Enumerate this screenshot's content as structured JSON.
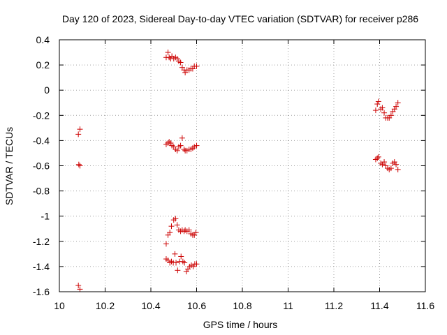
{
  "chart_data": {
    "type": "scatter",
    "title": "Day 120 of 2023, Sidereal Day-to-day VTEC variation (SDTVAR) for receiver p286",
    "xlabel": "GPS time / hours",
    "ylabel": "SDTVAR / TECUs",
    "xlim": [
      10,
      11.6
    ],
    "ylim": [
      -1.6,
      0.4
    ],
    "xticks": [
      10,
      10.2,
      10.4,
      10.6,
      10.8,
      11,
      11.2,
      11.4,
      11.6
    ],
    "yticks": [
      -1.6,
      -1.4,
      -1.2,
      -1,
      -0.8,
      -0.6,
      -0.4,
      -0.2,
      0,
      0.2,
      0.4
    ],
    "xtick_labels": [
      "10",
      "10.2",
      "10.4",
      "10.6",
      "10.8",
      "11",
      "11.2",
      "11.4",
      "11.6"
    ],
    "ytick_labels": [
      "-1.6",
      "-1.4",
      "-1.2",
      "-1",
      "-0.8",
      "-0.6",
      "-0.4",
      "-0.2",
      "0",
      "0.2",
      "0.4"
    ],
    "grid": true,
    "marker": "+",
    "color": "#cc0000",
    "series": [
      {
        "name": "SDTVAR",
        "points": [
          [
            10.083,
            -0.35
          ],
          [
            10.09,
            -0.31
          ],
          [
            10.085,
            -0.59
          ],
          [
            10.09,
            -0.6
          ],
          [
            10.083,
            -1.55
          ],
          [
            10.09,
            -1.58
          ],
          [
            10.467,
            0.26
          ],
          [
            10.475,
            0.3
          ],
          [
            10.48,
            0.26
          ],
          [
            10.487,
            0.25
          ],
          [
            10.492,
            0.27
          ],
          [
            10.5,
            0.25
          ],
          [
            10.508,
            0.26
          ],
          [
            10.515,
            0.25
          ],
          [
            10.522,
            0.23
          ],
          [
            10.53,
            0.22
          ],
          [
            10.537,
            0.18
          ],
          [
            10.545,
            0.16
          ],
          [
            10.55,
            0.14
          ],
          [
            10.558,
            0.16
          ],
          [
            10.567,
            0.16
          ],
          [
            10.575,
            0.17
          ],
          [
            10.583,
            0.17
          ],
          [
            10.59,
            0.19
          ],
          [
            10.6,
            0.19
          ],
          [
            10.467,
            -0.43
          ],
          [
            10.475,
            -0.42
          ],
          [
            10.48,
            -0.41
          ],
          [
            10.487,
            -0.42
          ],
          [
            10.492,
            -0.44
          ],
          [
            10.5,
            -0.45
          ],
          [
            10.508,
            -0.47
          ],
          [
            10.515,
            -0.48
          ],
          [
            10.522,
            -0.45
          ],
          [
            10.53,
            -0.44
          ],
          [
            10.537,
            -0.38
          ],
          [
            10.545,
            -0.47
          ],
          [
            10.55,
            -0.48
          ],
          [
            10.558,
            -0.48
          ],
          [
            10.567,
            -0.47
          ],
          [
            10.575,
            -0.47
          ],
          [
            10.583,
            -0.46
          ],
          [
            10.59,
            -0.45
          ],
          [
            10.6,
            -0.44
          ],
          [
            10.467,
            -1.22
          ],
          [
            10.475,
            -1.15
          ],
          [
            10.483,
            -1.13
          ],
          [
            10.49,
            -1.08
          ],
          [
            10.5,
            -1.03
          ],
          [
            10.508,
            -1.02
          ],
          [
            10.515,
            -1.07
          ],
          [
            10.522,
            -1.11
          ],
          [
            10.53,
            -1.12
          ],
          [
            10.537,
            -1.11
          ],
          [
            10.545,
            -1.12
          ],
          [
            10.55,
            -1.11
          ],
          [
            10.558,
            -1.12
          ],
          [
            10.567,
            -1.11
          ],
          [
            10.575,
            -1.14
          ],
          [
            10.583,
            -1.15
          ],
          [
            10.59,
            -1.15
          ],
          [
            10.597,
            -1.13
          ],
          [
            10.467,
            -1.34
          ],
          [
            10.475,
            -1.35
          ],
          [
            10.483,
            -1.37
          ],
          [
            10.49,
            -1.36
          ],
          [
            10.498,
            -1.37
          ],
          [
            10.505,
            -1.3
          ],
          [
            10.51,
            -1.37
          ],
          [
            10.517,
            -1.43
          ],
          [
            10.525,
            -1.36
          ],
          [
            10.532,
            -1.32
          ],
          [
            10.54,
            -1.36
          ],
          [
            10.547,
            -1.37
          ],
          [
            10.555,
            -1.44
          ],
          [
            10.562,
            -1.42
          ],
          [
            10.57,
            -1.4
          ],
          [
            10.577,
            -1.39
          ],
          [
            10.585,
            -1.4
          ],
          [
            10.592,
            -1.38
          ],
          [
            10.6,
            -1.38
          ],
          [
            11.383,
            -0.16
          ],
          [
            11.39,
            -0.11
          ],
          [
            11.395,
            -0.09
          ],
          [
            11.405,
            -0.15
          ],
          [
            11.412,
            -0.14
          ],
          [
            11.42,
            -0.18
          ],
          [
            11.427,
            -0.22
          ],
          [
            11.435,
            -0.22
          ],
          [
            11.442,
            -0.22
          ],
          [
            11.45,
            -0.2
          ],
          [
            11.458,
            -0.17
          ],
          [
            11.465,
            -0.15
          ],
          [
            11.472,
            -0.13
          ],
          [
            11.48,
            -0.1
          ],
          [
            11.383,
            -0.55
          ],
          [
            11.39,
            -0.54
          ],
          [
            11.395,
            -0.53
          ],
          [
            11.405,
            -0.58
          ],
          [
            11.412,
            -0.59
          ],
          [
            11.42,
            -0.57
          ],
          [
            11.427,
            -0.6
          ],
          [
            11.435,
            -0.62
          ],
          [
            11.442,
            -0.63
          ],
          [
            11.45,
            -0.62
          ],
          [
            11.458,
            -0.58
          ],
          [
            11.465,
            -0.57
          ],
          [
            11.472,
            -0.59
          ],
          [
            11.48,
            -0.63
          ]
        ]
      }
    ]
  }
}
